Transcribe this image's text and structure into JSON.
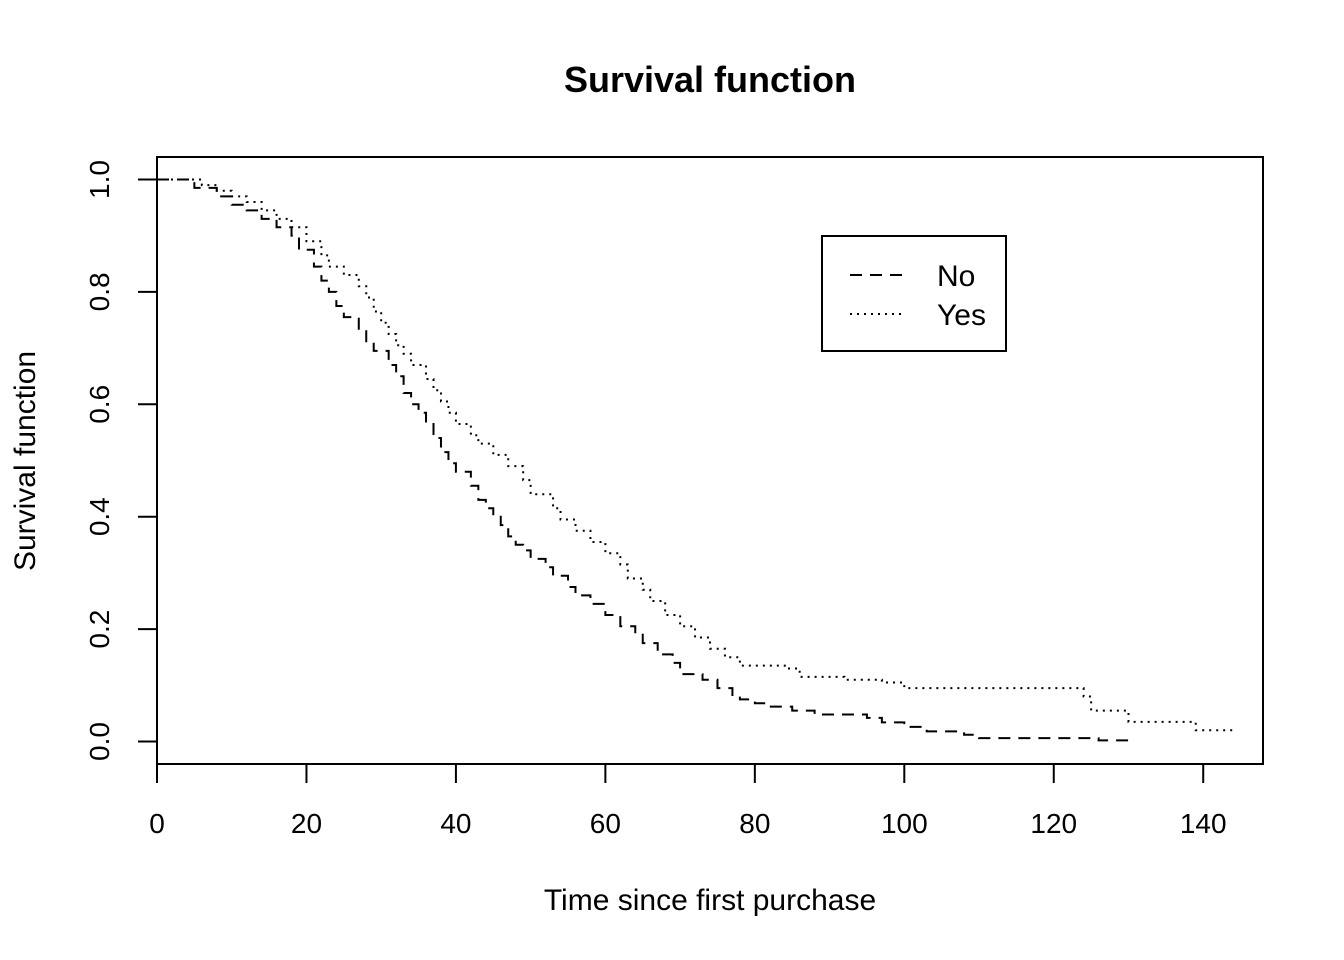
{
  "chart_data": {
    "type": "line",
    "title": "Survival function",
    "xlabel": "Time since first purchase",
    "ylabel": "Survival function",
    "xlim": [
      0,
      148
    ],
    "ylim": [
      -0.04,
      1.04
    ],
    "xticks": [
      0,
      20,
      40,
      60,
      80,
      100,
      120,
      140
    ],
    "xtick_labels": [
      "0",
      "20",
      "40",
      "60",
      "80",
      "100",
      "120",
      "140"
    ],
    "yticks": [
      0,
      0.2,
      0.4,
      0.6,
      0.8,
      1.0
    ],
    "ytick_labels": [
      "0.0",
      "0.2",
      "0.4",
      "0.6",
      "0.8",
      "1.0"
    ],
    "step": true,
    "grid": false,
    "legend": {
      "position": "top-right",
      "entries": [
        "No",
        "Yes"
      ]
    },
    "series": [
      {
        "name": "No",
        "line_style": "dashed",
        "color": "#000000",
        "x": [
          0,
          5,
          8,
          10,
          12,
          14,
          16,
          18,
          19,
          21,
          22,
          23,
          24,
          25,
          27,
          28,
          29,
          31,
          32,
          33,
          34,
          35,
          36,
          37,
          38,
          39,
          40,
          42,
          43,
          44,
          45,
          46,
          47,
          48,
          49,
          50,
          52,
          53,
          55,
          56,
          58,
          60,
          62,
          64,
          65,
          67,
          69,
          70,
          73,
          75,
          77,
          78,
          80,
          82,
          85,
          88,
          95,
          97,
          100,
          103,
          108,
          110,
          115,
          120,
          125,
          126,
          131
        ],
        "y": [
          1.0,
          0.985,
          0.97,
          0.955,
          0.945,
          0.93,
          0.915,
          0.9,
          0.875,
          0.845,
          0.82,
          0.8,
          0.775,
          0.755,
          0.73,
          0.71,
          0.695,
          0.67,
          0.65,
          0.62,
          0.6,
          0.585,
          0.565,
          0.54,
          0.515,
          0.495,
          0.48,
          0.455,
          0.43,
          0.415,
          0.4,
          0.385,
          0.365,
          0.35,
          0.34,
          0.325,
          0.31,
          0.295,
          0.275,
          0.26,
          0.245,
          0.225,
          0.205,
          0.19,
          0.175,
          0.155,
          0.14,
          0.12,
          0.11,
          0.095,
          0.08,
          0.075,
          0.068,
          0.062,
          0.055,
          0.048,
          0.042,
          0.034,
          0.026,
          0.018,
          0.012,
          0.006,
          0.006,
          0.006,
          0.006,
          0.002,
          0.002
        ]
      },
      {
        "name": "Yes",
        "line_style": "dotted",
        "color": "#000000",
        "x": [
          0,
          6,
          8,
          10,
          12,
          14,
          16,
          18,
          20,
          22,
          23,
          25,
          27,
          28,
          29,
          30,
          31,
          32,
          33,
          34,
          36,
          37,
          38,
          39,
          40,
          42,
          43,
          45,
          47,
          49,
          50,
          53,
          54,
          56,
          58,
          60,
          62,
          63,
          65,
          66,
          68,
          70,
          72,
          74,
          76,
          78,
          84,
          86,
          92,
          97,
          100,
          110,
          123,
          124,
          125,
          130,
          139,
          144
        ],
        "y": [
          1.0,
          0.99,
          0.98,
          0.97,
          0.96,
          0.945,
          0.93,
          0.915,
          0.89,
          0.865,
          0.845,
          0.83,
          0.81,
          0.79,
          0.765,
          0.745,
          0.725,
          0.705,
          0.69,
          0.67,
          0.645,
          0.625,
          0.605,
          0.585,
          0.565,
          0.545,
          0.53,
          0.51,
          0.49,
          0.465,
          0.44,
          0.415,
          0.395,
          0.375,
          0.355,
          0.335,
          0.315,
          0.29,
          0.27,
          0.25,
          0.225,
          0.205,
          0.185,
          0.165,
          0.15,
          0.135,
          0.13,
          0.115,
          0.11,
          0.105,
          0.095,
          0.095,
          0.095,
          0.08,
          0.055,
          0.035,
          0.02,
          0.015
        ]
      }
    ]
  }
}
